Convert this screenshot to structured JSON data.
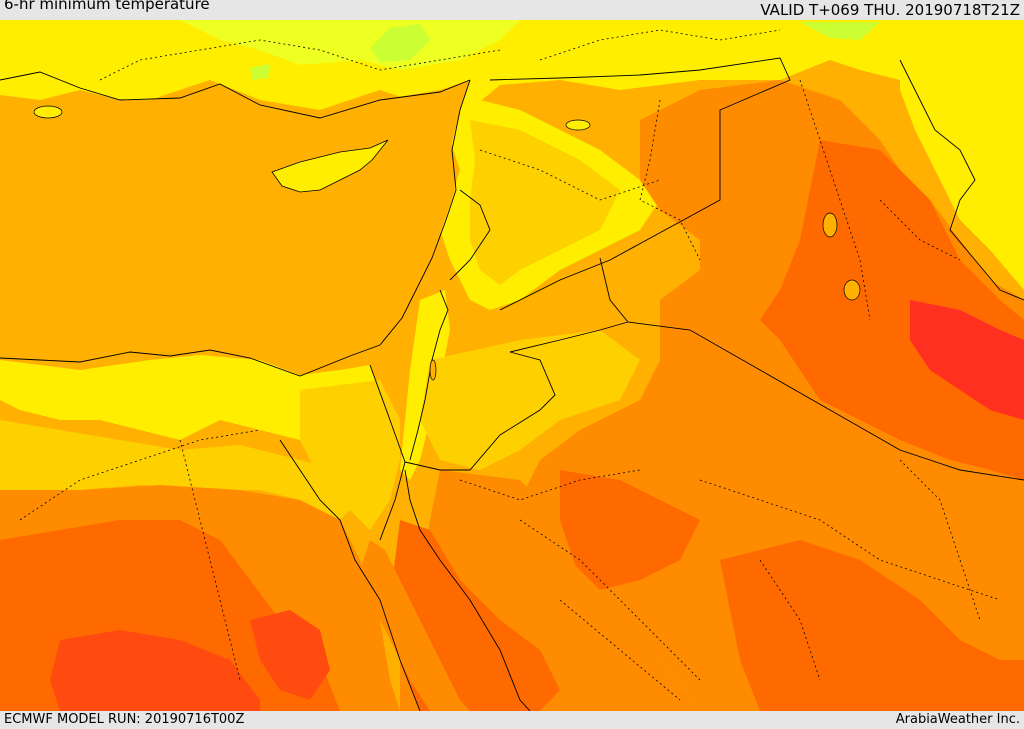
{
  "header": {
    "title": "6-hr minimum temperature",
    "valid": "VALID T+069 THU. 20190718T21Z"
  },
  "footer": {
    "model_run": "ECMWF MODEL RUN: 20190716T00Z",
    "credit": "ArabiaWeather Inc."
  },
  "palette": {
    "pale_green": "#ccff33",
    "yellow_green": "#eeff22",
    "yellow": "#ffee00",
    "gold": "#ffd000",
    "amber": "#ffb000",
    "orange": "#ff8c00",
    "dark_orange": "#ff6a00",
    "red_orange": "#ff4a10",
    "red": "#ff3020",
    "border_color": "#000000"
  }
}
